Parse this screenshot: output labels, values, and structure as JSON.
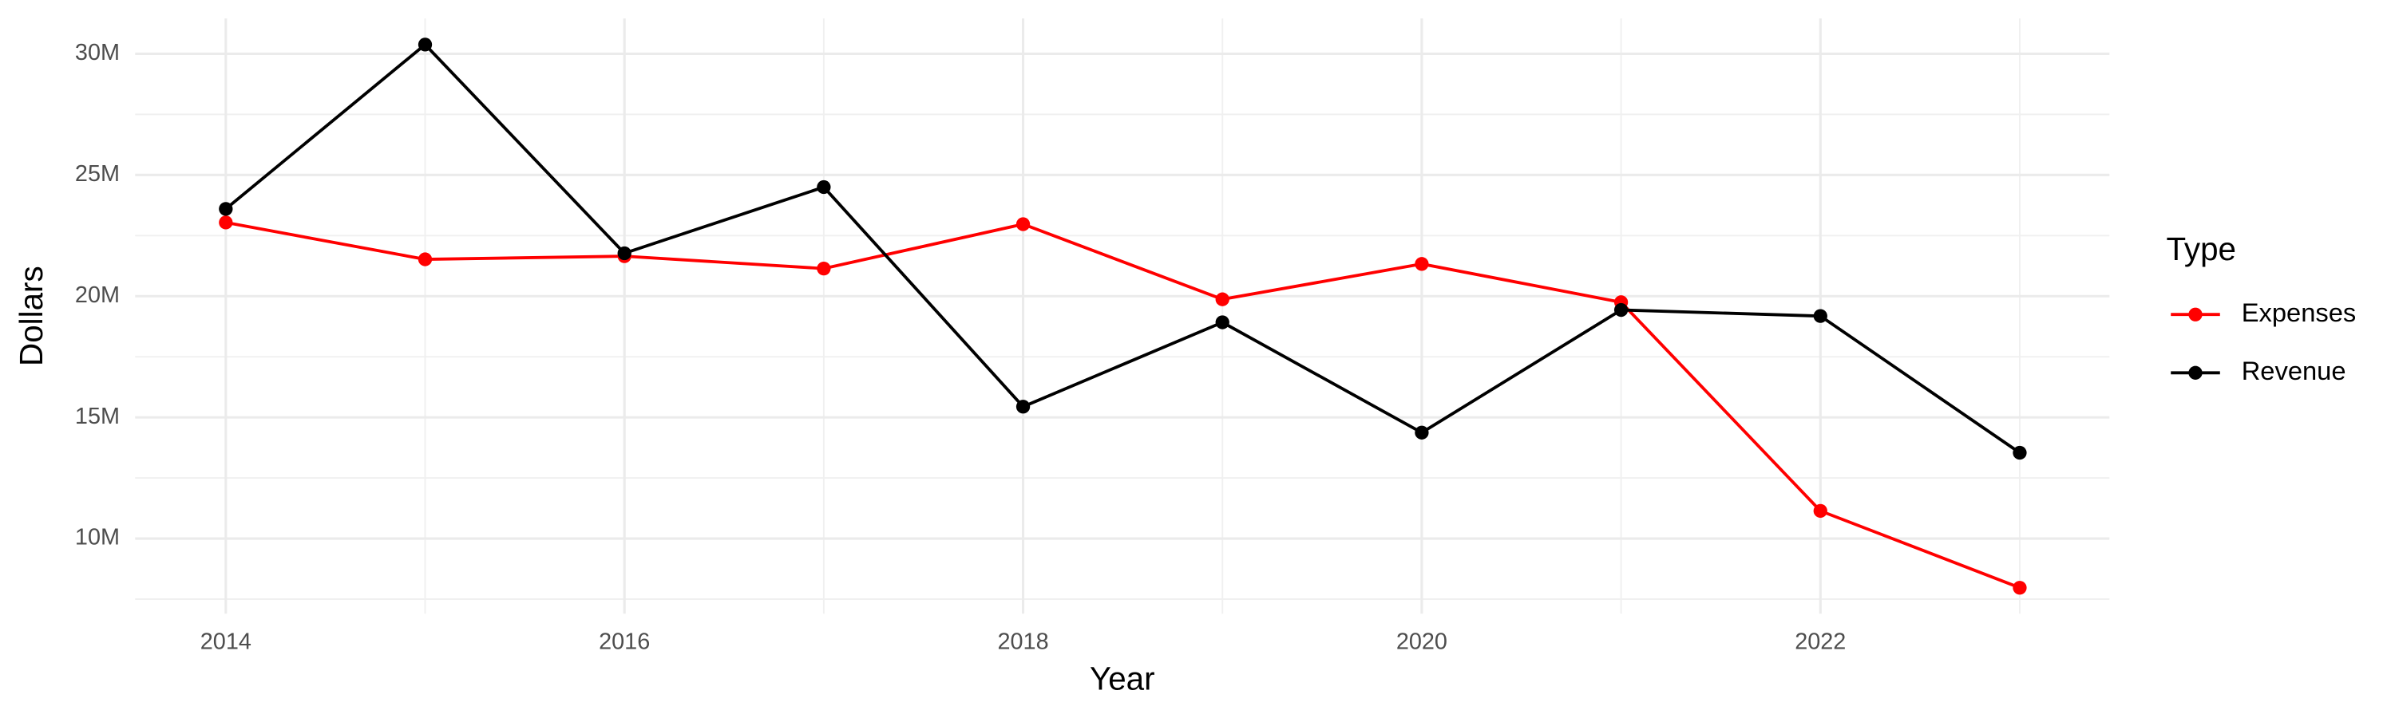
{
  "chart_data": {
    "type": "line",
    "x_label": "Year",
    "y_label": "Dollars",
    "legend_title": "Type",
    "legend_position": "right",
    "x": [
      2014,
      2015,
      2016,
      2017,
      2018,
      2019,
      2020,
      2021,
      2022,
      2023
    ],
    "series": [
      {
        "name": "Expenses",
        "color": "#ff0000",
        "values": [
          23040000,
          21520000,
          21650000,
          21140000,
          22970000,
          19870000,
          21330000,
          19750000,
          11140000,
          7970000
        ]
      },
      {
        "name": "Revenue",
        "color": "#000000",
        "values": [
          23600000,
          30380000,
          21770000,
          24500000,
          15440000,
          18920000,
          14370000,
          19430000,
          19180000,
          13540000
        ]
      }
    ],
    "xlim": [
      2013.545,
      2023.45
    ],
    "xticks": [
      2014,
      2016,
      2018,
      2020,
      2022
    ],
    "ylim": [
      6900000,
      31460000
    ],
    "yticks": [
      {
        "value": 10000000,
        "label": "10M"
      },
      {
        "value": 15000000,
        "label": "15M"
      },
      {
        "value": 20000000,
        "label": "20M"
      },
      {
        "value": 25000000,
        "label": "25M"
      },
      {
        "value": 30000000,
        "label": "30M"
      }
    ],
    "grid": true
  }
}
